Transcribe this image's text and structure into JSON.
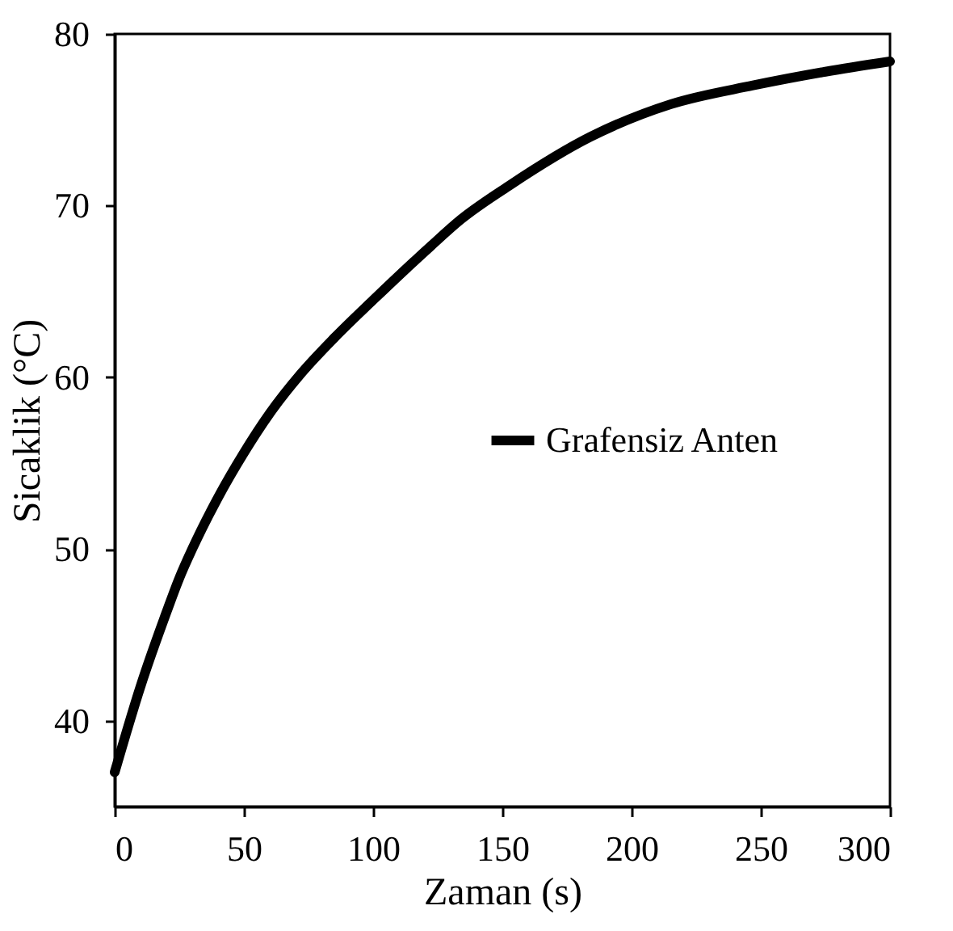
{
  "chart_data": {
    "type": "line",
    "xlabel": "Zaman (s)",
    "ylabel": "Sicaklik (°C)",
    "x": [
      0,
      10,
      20,
      25,
      30,
      40,
      50,
      60,
      72,
      85,
      100,
      122,
      134,
      153,
      184,
      215,
      247,
      275,
      300
    ],
    "series": [
      {
        "name": "Grafensiz Anten",
        "color": "#000000",
        "values": [
          37,
          42.0,
          46.3,
          48.3,
          50.0,
          53.0,
          55.6,
          57.9,
          60.2,
          62.3,
          64.5,
          67.6,
          69.2,
          71.2,
          74.0,
          75.9,
          77.0,
          77.8,
          78.4
        ]
      }
    ],
    "xlim": [
      0,
      300
    ],
    "xticks": [
      0,
      50,
      100,
      150,
      200,
      250,
      300
    ],
    "ylim": [
      35,
      80
    ],
    "yticks": [
      40,
      50,
      60,
      70,
      80
    ],
    "grid": false,
    "legend": "right",
    "marker": "none",
    "line_style": "solid"
  }
}
